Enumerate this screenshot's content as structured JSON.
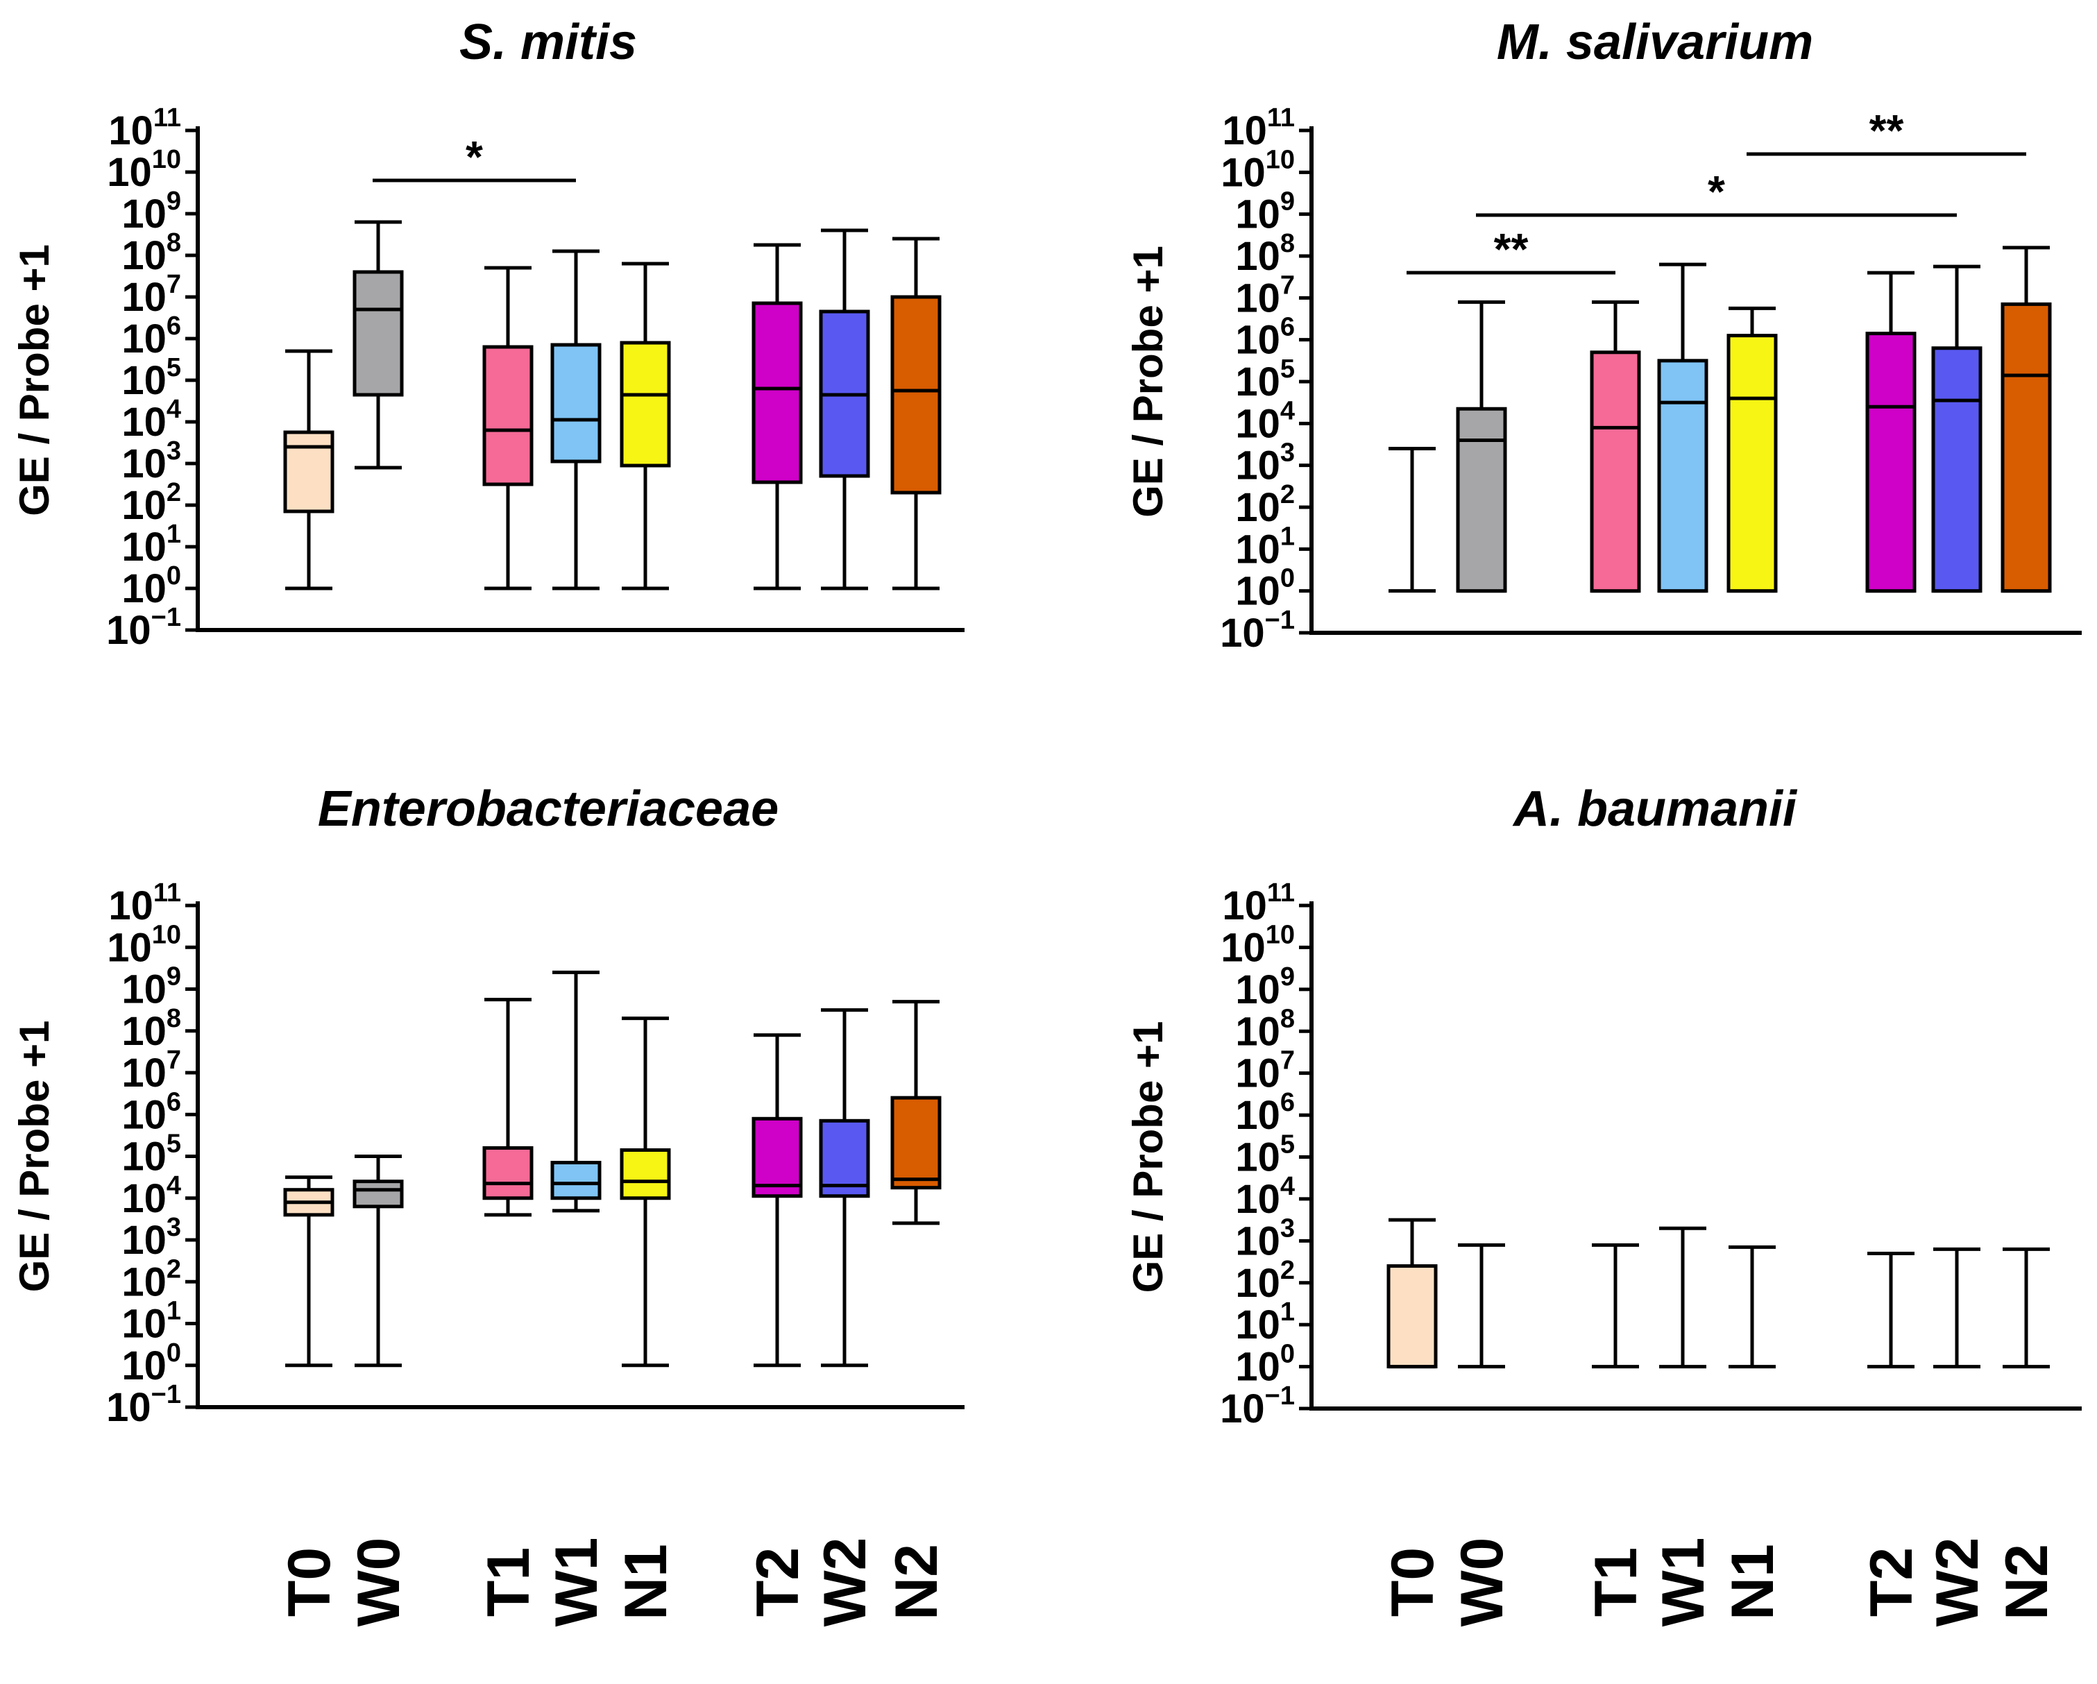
{
  "chart_data": [
    {
      "type": "boxplot",
      "title": "S. mitis",
      "ylabel": "GE / Probe +1",
      "yscale": "log",
      "ylim_exponents": [
        -1,
        11
      ],
      "categories": [
        "T0",
        "W0",
        "T1",
        "W1",
        "N1",
        "T2",
        "W2",
        "N2"
      ],
      "colors": [
        "#fde0c3",
        "#a6a6a8",
        "#f56a96",
        "#7fc4f5",
        "#f7f514",
        "#cf00c8",
        "#5959f2",
        "#d85c00"
      ],
      "boxes_log10": [
        {
          "category": "T0",
          "whisker_low": 0,
          "q1": 1.85,
          "median": 3.4,
          "q3": 3.75,
          "whisker_high": 5.7
        },
        {
          "category": "W0",
          "whisker_low": 2.9,
          "q1": 4.65,
          "median": 6.7,
          "q3": 7.6,
          "whisker_high": 8.8
        },
        {
          "category": "T1",
          "whisker_low": 0,
          "q1": 2.5,
          "median": 3.8,
          "q3": 5.8,
          "whisker_high": 7.7
        },
        {
          "category": "W1",
          "whisker_low": 0,
          "q1": 3.05,
          "median": 4.05,
          "q3": 5.85,
          "whisker_high": 8.1
        },
        {
          "category": "N1",
          "whisker_low": 0,
          "q1": 2.95,
          "median": 4.65,
          "q3": 5.9,
          "whisker_high": 7.8
        },
        {
          "category": "T2",
          "whisker_low": 0,
          "q1": 2.55,
          "median": 4.8,
          "q3": 6.85,
          "whisker_high": 8.25
        },
        {
          "category": "W2",
          "whisker_low": 0,
          "q1": 2.7,
          "median": 4.65,
          "q3": 6.65,
          "whisker_high": 8.6
        },
        {
          "category": "N2",
          "whisker_low": 0,
          "q1": 2.3,
          "median": 4.75,
          "q3": 7.0,
          "whisker_high": 8.4
        }
      ],
      "significance": [
        {
          "from": "W0",
          "to": "W1",
          "label": "*"
        }
      ]
    },
    {
      "type": "boxplot",
      "title": "M. salivarium",
      "ylabel": "GE / Probe +1",
      "yscale": "log",
      "ylim_exponents": [
        -1,
        11
      ],
      "categories": [
        "T0",
        "W0",
        "T1",
        "W1",
        "N1",
        "T2",
        "W2",
        "N2"
      ],
      "colors": [
        "#fde0c3",
        "#a6a6a8",
        "#f56a96",
        "#7fc4f5",
        "#f7f514",
        "#cf00c8",
        "#5959f2",
        "#d85c00"
      ],
      "boxes_log10": [
        {
          "category": "T0",
          "whisker_low": 0,
          "q1": 0,
          "median": 0,
          "q3": 0,
          "whisker_high": 3.4
        },
        {
          "category": "W0",
          "whisker_low": 0,
          "q1": 0,
          "median": 3.6,
          "q3": 4.35,
          "whisker_high": 6.9
        },
        {
          "category": "T1",
          "whisker_low": 0,
          "q1": 0,
          "median": 3.9,
          "q3": 5.7,
          "whisker_high": 6.9
        },
        {
          "category": "W1",
          "whisker_low": 0,
          "q1": 0,
          "median": 4.5,
          "q3": 5.5,
          "whisker_high": 7.8
        },
        {
          "category": "N1",
          "whisker_low": 0,
          "q1": 0,
          "median": 4.6,
          "q3": 6.1,
          "whisker_high": 6.75
        },
        {
          "category": "T2",
          "whisker_low": 0,
          "q1": 0,
          "median": 4.4,
          "q3": 6.15,
          "whisker_high": 7.6
        },
        {
          "category": "W2",
          "whisker_low": 0,
          "q1": 0,
          "median": 4.55,
          "q3": 5.8,
          "whisker_high": 7.75
        },
        {
          "category": "N2",
          "whisker_low": 0,
          "q1": 0,
          "median": 5.15,
          "q3": 6.85,
          "whisker_high": 8.2
        }
      ],
      "significance": [
        {
          "from": "T0",
          "to": "T1",
          "label": "**"
        },
        {
          "from": "W0",
          "to": "W2",
          "label": "*"
        },
        {
          "from": "N1",
          "to": "N2",
          "label": "**"
        }
      ]
    },
    {
      "type": "boxplot",
      "title": "Enterobacteriaceae",
      "ylabel": "GE / Probe +1",
      "yscale": "log",
      "ylim_exponents": [
        -1,
        11
      ],
      "categories": [
        "T0",
        "W0",
        "T1",
        "W1",
        "N1",
        "T2",
        "W2",
        "N2"
      ],
      "colors": [
        "#fde0c3",
        "#a6a6a8",
        "#f56a96",
        "#7fc4f5",
        "#f7f514",
        "#cf00c8",
        "#5959f2",
        "#d85c00"
      ],
      "boxes_log10": [
        {
          "category": "T0",
          "whisker_low": 0,
          "q1": 3.6,
          "median": 3.9,
          "q3": 4.2,
          "whisker_high": 4.5
        },
        {
          "category": "W0",
          "whisker_low": 0,
          "q1": 3.8,
          "median": 4.2,
          "q3": 4.4,
          "whisker_high": 5.0
        },
        {
          "category": "T1",
          "whisker_low": 3.6,
          "q1": 4.0,
          "median": 4.35,
          "q3": 5.2,
          "whisker_high": 8.75
        },
        {
          "category": "W1",
          "whisker_low": 3.7,
          "q1": 4.0,
          "median": 4.35,
          "q3": 4.85,
          "whisker_high": 9.4
        },
        {
          "category": "N1",
          "whisker_low": 0,
          "q1": 4.0,
          "median": 4.4,
          "q3": 5.15,
          "whisker_high": 8.3
        },
        {
          "category": "T2",
          "whisker_low": 0,
          "q1": 4.05,
          "median": 4.3,
          "q3": 5.9,
          "whisker_high": 7.9
        },
        {
          "category": "W2",
          "whisker_low": 0,
          "q1": 4.05,
          "median": 4.3,
          "q3": 5.85,
          "whisker_high": 8.5
        },
        {
          "category": "N2",
          "whisker_low": 3.4,
          "q1": 4.25,
          "median": 4.45,
          "q3": 6.4,
          "whisker_high": 8.7
        }
      ],
      "significance": []
    },
    {
      "type": "boxplot",
      "title": "A. baumanii",
      "ylabel": "GE / Probe +1",
      "yscale": "log",
      "ylim_exponents": [
        -1,
        11
      ],
      "categories": [
        "T0",
        "W0",
        "T1",
        "W1",
        "N1",
        "T2",
        "W2",
        "N2"
      ],
      "colors": [
        "#fde0c3",
        "#a6a6a8",
        "#f56a96",
        "#7fc4f5",
        "#f7f514",
        "#cf00c8",
        "#5959f2",
        "#d85c00"
      ],
      "boxes_log10": [
        {
          "category": "T0",
          "whisker_low": 0,
          "q1": 0,
          "median": 0,
          "q3": 2.4,
          "whisker_high": 3.5
        },
        {
          "category": "W0",
          "whisker_low": 0,
          "q1": 0,
          "median": 0,
          "q3": 0,
          "whisker_high": 2.9
        },
        {
          "category": "T1",
          "whisker_low": 0,
          "q1": 0,
          "median": 0,
          "q3": 0,
          "whisker_high": 2.9
        },
        {
          "category": "W1",
          "whisker_low": 0,
          "q1": 0,
          "median": 0,
          "q3": 0,
          "whisker_high": 3.3
        },
        {
          "category": "N1",
          "whisker_low": 0,
          "q1": 0,
          "median": 0,
          "q3": 0,
          "whisker_high": 2.85
        },
        {
          "category": "T2",
          "whisker_low": 0,
          "q1": 0,
          "median": 0,
          "q3": 0,
          "whisker_high": 2.7
        },
        {
          "category": "W2",
          "whisker_low": 0,
          "q1": 0,
          "median": 0,
          "q3": 0,
          "whisker_high": 2.8
        },
        {
          "category": "N2",
          "whisker_low": 0,
          "q1": 0,
          "median": 0,
          "q3": 0,
          "whisker_high": 2.8
        }
      ],
      "significance": []
    }
  ],
  "tick_base": "10",
  "tick_exponents": [
    "11",
    "10",
    "9",
    "8",
    "7",
    "6",
    "5",
    "4",
    "3",
    "2",
    "1",
    "0",
    "−1"
  ]
}
